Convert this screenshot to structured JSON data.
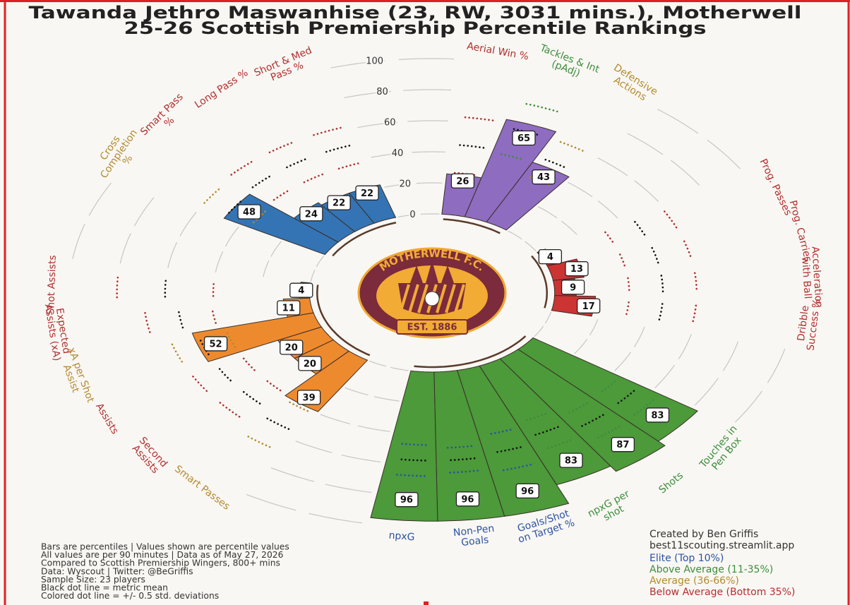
{
  "chart_data": {
    "type": "pizza",
    "title": "Tawanda Jethro Maswanhise (23, RW, 3031 mins.), Motherwell",
    "subtitle": "25-26 Scottish Premiership Percentile Rankings",
    "categories": [
      "Aerial Win %",
      "Tackles & Int (pAdj)",
      "Defensive Actions",
      "Prog. Passes",
      "Prog. Carries",
      "Acceleration with Ball",
      "Dribble Success %",
      "Touches in Pen Box",
      "Shots",
      "npxG per shot",
      "Goals/Shot on Target %",
      "Non-Pen Goals",
      "npxG",
      "Smart Passes",
      "Second Assists",
      "Assists",
      "xA per Shot Assist",
      "Expected Assists (xA)",
      "Shot Assists",
      "Cross Completion %",
      "Smart Pass %",
      "Long Pass %",
      "Short & Med Pass %"
    ],
    "values": [
      26,
      65,
      43,
      4,
      13,
      9,
      17,
      83,
      87,
      83,
      96,
      96,
      96,
      39,
      20,
      20,
      52,
      11,
      4,
      48,
      24,
      22,
      22
    ],
    "bar_colors": [
      "#8e6cc0",
      "#8e6cc0",
      "#8e6cc0",
      "#cc3333",
      "#cc3333",
      "#cc3333",
      "#cc3333",
      "#4c9a3a",
      "#4c9a3a",
      "#4c9a3a",
      "#4c9a3a",
      "#4c9a3a",
      "#4c9a3a",
      "#ee8a2e",
      "#ee8a2e",
      "#ee8a2e",
      "#ee8a2e",
      "#ee8a2e",
      "#ee8a2e",
      "#3474b4",
      "#3474b4",
      "#3474b4",
      "#3474b4"
    ],
    "label_colors": [
      "#b22e2e",
      "#3c8d3c",
      "#b38a2e",
      "#b22e2e",
      "#b22e2e",
      "#b22e2e",
      "#b22e2e",
      "#3c8d3c",
      "#3c8d3c",
      "#3c8d3c",
      "#2a52a6",
      "#2a52a6",
      "#2a52a6",
      "#b38a2e",
      "#b22e2e",
      "#b22e2e",
      "#b38a2e",
      "#b22e2e",
      "#b22e2e",
      "#b38a2e",
      "#b22e2e",
      "#b22e2e",
      "#b22e2e"
    ],
    "means": [
      45,
      60,
      47,
      45,
      45,
      45,
      45,
      54,
      55,
      50,
      55,
      57,
      57,
      55,
      50,
      50,
      50,
      55,
      60,
      48,
      50,
      50,
      50
    ],
    "stds": [
      18,
      17,
      13,
      14,
      14,
      14,
      14,
      10,
      10,
      10,
      12,
      8,
      10,
      14,
      12,
      12,
      12,
      14,
      20,
      12,
      12,
      12,
      12
    ],
    "ylim": [
      0,
      100
    ],
    "yticks": [
      0,
      20,
      40,
      60,
      80,
      100
    ],
    "logo": {
      "name": "MOTHERWELL F.C.",
      "est": "EST. 1886"
    },
    "notes": [
      "Bars are percentiles | Values shown are percentile values",
      "All values are per 90 minutes | Data as of May 27, 2026",
      "Compared to Scottish Premiership Wingers, 800+ mins",
      "Data: Wyscout | Twitter: @BeGriffis",
      "Sample Size: 23 players",
      "Black dot line = metric mean",
      "Colored dot line = +/- 0.5 std. deviations"
    ],
    "credits": [
      "Created by Ben Griffis",
      "best11scouting.streamlit.app"
    ],
    "legend": [
      {
        "name": "Elite (Top 10%)",
        "color": "#2a52a6"
      },
      {
        "name": "Above Average (11-35%)",
        "color": "#3c8d3c"
      },
      {
        "name": "Average (36-66%)",
        "color": "#b38a2e"
      },
      {
        "name": "Below Average (Bottom 35%)",
        "color": "#b22e2e"
      }
    ]
  }
}
